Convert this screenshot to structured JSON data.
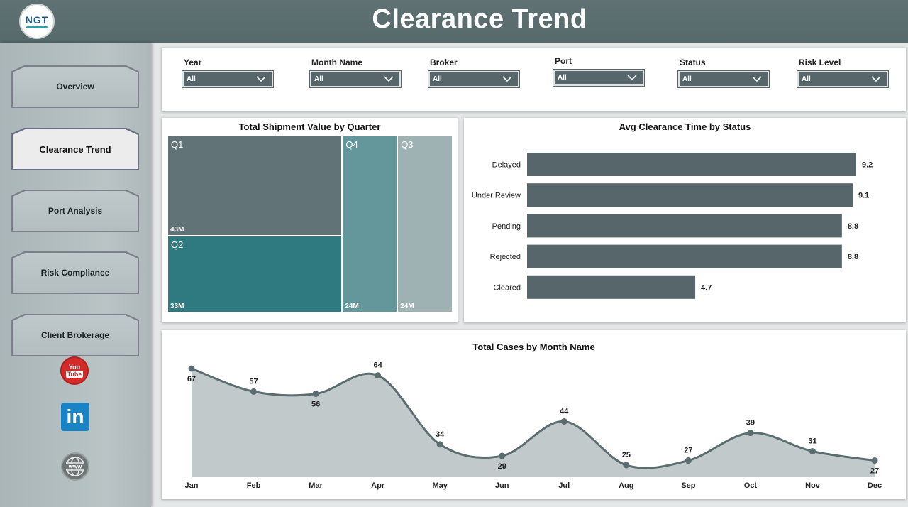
{
  "header": {
    "title": "Clearance Trend",
    "logo_text": "NGT"
  },
  "sidebar": {
    "items": [
      {
        "label": "Overview",
        "active": false
      },
      {
        "label": "Clearance Trend",
        "active": true
      },
      {
        "label": "Port Analysis",
        "active": false
      },
      {
        "label": "Risk Compliance",
        "active": false
      },
      {
        "label": "Client Brokerage",
        "active": false
      }
    ],
    "social": {
      "youtube_top": "You",
      "youtube_bottom": "Tube",
      "linkedin": "in"
    }
  },
  "filters": [
    {
      "label": "Year",
      "value": "All"
    },
    {
      "label": "Month Name",
      "value": "All"
    },
    {
      "label": "Broker",
      "value": "All"
    },
    {
      "label": "Port",
      "value": "All"
    },
    {
      "label": "Status",
      "value": "All"
    },
    {
      "label": "Risk Level",
      "value": "All"
    }
  ],
  "colors": {
    "header": "#5f7173",
    "bar": "#56666a",
    "q1": "#627377",
    "q2": "#2f7a80",
    "q4": "#64979b",
    "q3": "#9eb2b4",
    "area": "#c2c9ca",
    "line": "#5b6d70"
  },
  "chart_data": [
    {
      "type": "heatmap",
      "title": "Total Shipment Value by Quarter",
      "categories": [
        "Q1",
        "Q2",
        "Q4",
        "Q3"
      ],
      "values": [
        43,
        33,
        24,
        24
      ],
      "value_labels": [
        "43M",
        "33M",
        "24M",
        "24M"
      ]
    },
    {
      "type": "bar",
      "orientation": "horizontal",
      "title": "Avg Clearance Time by Status",
      "categories": [
        "Delayed",
        "Under Review",
        "Pending",
        "Rejected",
        "Cleared"
      ],
      "values": [
        9.2,
        9.1,
        8.8,
        8.8,
        4.7
      ],
      "xlim": [
        0,
        10
      ]
    },
    {
      "type": "area",
      "title": "Total Cases by Month Name",
      "categories": [
        "Jan",
        "Feb",
        "Mar",
        "Apr",
        "May",
        "Jun",
        "Jul",
        "Aug",
        "Sep",
        "Oct",
        "Nov",
        "Dec"
      ],
      "values": [
        67,
        57,
        56,
        64,
        34,
        29,
        44,
        25,
        27,
        39,
        31,
        27
      ],
      "ylim": [
        0,
        75
      ]
    }
  ]
}
